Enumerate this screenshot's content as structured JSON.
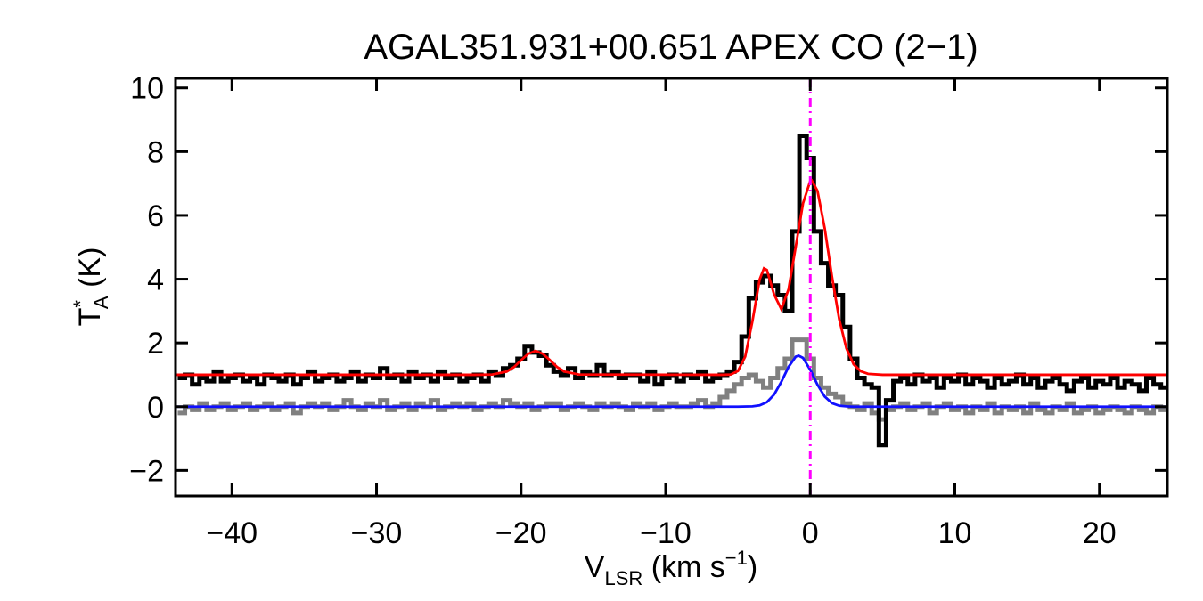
{
  "chart_data": {
    "type": "spectrum",
    "title": "AGAL351.931+00.651   APEX CO (2−1)",
    "xlabel": [
      {
        "text": "V"
      },
      {
        "text": "LSR",
        "script": "sub"
      },
      {
        "text": " (km s"
      },
      {
        "text": "−1",
        "script": "sup"
      },
      {
        "text": ")"
      }
    ],
    "ylabel": [
      {
        "text": "T"
      },
      {
        "text": "*",
        "script": "sup"
      },
      {
        "text": "A",
        "script": "sub"
      },
      {
        "text": " (K)"
      }
    ],
    "xlim": [
      -43.9,
      24.7
    ],
    "ylim": [
      -2.8,
      10.3
    ],
    "xticks": [
      {
        "value": -40,
        "label": "−40"
      },
      {
        "value": -30,
        "label": "−30"
      },
      {
        "value": -20,
        "label": "−20"
      },
      {
        "value": -10,
        "label": "−10"
      },
      0,
      10,
      20
    ],
    "yticks": [
      {
        "value": -2,
        "label": "−2"
      },
      0,
      2,
      4,
      6,
      8,
      10
    ],
    "x": [
      -43.5,
      -43,
      -42.5,
      -42,
      -41.5,
      -41,
      -40.5,
      -40,
      -39.5,
      -39,
      -38.5,
      -38,
      -37.5,
      -37,
      -36.5,
      -36,
      -35.5,
      -35,
      -34.5,
      -34,
      -33.5,
      -33,
      -32.5,
      -32,
      -31.5,
      -31,
      -30.5,
      -30,
      -29.5,
      -29,
      -28.5,
      -28,
      -27.5,
      -27,
      -26.5,
      -26,
      -25.5,
      -25,
      -24.5,
      -24,
      -23.5,
      -23,
      -22.5,
      -22,
      -21.5,
      -21,
      -20.5,
      -20,
      -19.5,
      -19,
      -18.5,
      -18,
      -17.5,
      -17,
      -16.5,
      -16,
      -15.5,
      -15,
      -14.5,
      -14,
      -13.5,
      -13,
      -12.5,
      -12,
      -11.5,
      -11,
      -10.5,
      -10,
      -9.5,
      -9,
      -8.5,
      -8,
      -7.5,
      -7,
      -6.5,
      -6,
      -5.5,
      -5,
      -4.5,
      -4,
      -3.5,
      -3,
      -2.5,
      -2,
      -1.5,
      -1,
      -0.5,
      0,
      0.5,
      1,
      1.5,
      2,
      2.5,
      3,
      3.5,
      4,
      4.5,
      5,
      5.5,
      6,
      6.5,
      7,
      7.5,
      8,
      8.5,
      9,
      9.5,
      10,
      10.5,
      11,
      11.5,
      12,
      12.5,
      13,
      13.5,
      14,
      14.5,
      15,
      15.5,
      16,
      16.5,
      17,
      17.5,
      18,
      18.5,
      19,
      19.5,
      20,
      20.5,
      21,
      21.5,
      22,
      22.5,
      23,
      23.5,
      24,
      24.5
    ],
    "series": [
      {
        "color": "#808080",
        "step": true,
        "values": [
          -0.2,
          0.0,
          -0.1,
          0.1,
          -0.1,
          0.0,
          0.1,
          -0.1,
          0.0,
          0.1,
          -0.1,
          0.0,
          0.1,
          -0.1,
          0.0,
          0.1,
          -0.2,
          0.0,
          0.1,
          0.0,
          0.1,
          -0.1,
          0.0,
          0.2,
          0.0,
          -0.1,
          0.1,
          0.0,
          0.2,
          -0.1,
          0.0,
          0.1,
          -0.1,
          0.1,
          0.0,
          0.2,
          -0.1,
          0.0,
          0.1,
          0.0,
          0.1,
          -0.1,
          0.0,
          0.1,
          0.0,
          0.2,
          0.1,
          0.0,
          0.1,
          -0.1,
          0.0,
          0.1,
          0.1,
          -0.1,
          0.0,
          0.1,
          0.0,
          -0.1,
          0.1,
          0.0,
          0.1,
          0.0,
          -0.1,
          0.1,
          0.0,
          0.1,
          -0.1,
          0.0,
          0.1,
          0.0,
          0.0,
          0.1,
          0.2,
          0.0,
          0.1,
          0.3,
          0.5,
          0.7,
          0.9,
          1.0,
          0.8,
          0.6,
          0.9,
          1.2,
          1.5,
          2.1,
          2.1,
          1.5,
          0.9,
          0.6,
          0.4,
          0.3,
          0.1,
          0.0,
          -0.1,
          0.1,
          -0.2,
          -0.4,
          -0.1,
          0.0,
          0.1,
          -0.1,
          0.0,
          0.1,
          -0.2,
          0.0,
          0.1,
          -0.1,
          0.0,
          -0.2,
          0.0,
          -0.1,
          0.1,
          -0.2,
          0.0,
          -0.1,
          0.0,
          -0.2,
          0.1,
          -0.1,
          -0.2,
          0.0,
          -0.1,
          0.1,
          -0.2,
          -0.1,
          0.0,
          -0.2,
          -0.1,
          0.0,
          -0.1,
          -0.2,
          0.0,
          -0.1,
          -0.2,
          0.0,
          -0.1
        ]
      },
      {
        "color": "#000000",
        "step": true,
        "values": [
          0.9,
          1.0,
          0.7,
          0.9,
          0.8,
          1.1,
          0.8,
          0.9,
          1.0,
          0.8,
          0.9,
          0.7,
          1.0,
          0.9,
          0.8,
          1.0,
          0.7,
          0.9,
          1.1,
          0.8,
          0.9,
          1.0,
          0.8,
          0.9,
          1.1,
          0.8,
          1.0,
          0.9,
          1.2,
          0.9,
          1.0,
          0.8,
          1.1,
          0.9,
          1.0,
          0.8,
          1.1,
          0.9,
          1.0,
          0.8,
          0.9,
          1.0,
          0.8,
          1.1,
          1.0,
          1.2,
          1.3,
          1.5,
          1.9,
          1.7,
          1.6,
          1.3,
          1.1,
          1.0,
          1.2,
          0.9,
          1.1,
          1.0,
          1.3,
          1.0,
          1.1,
          0.9,
          1.0,
          1.0,
          0.8,
          1.1,
          0.7,
          0.9,
          1.0,
          0.8,
          1.0,
          0.9,
          1.1,
          0.8,
          0.9,
          1.0,
          1.1,
          1.4,
          2.2,
          3.4,
          3.9,
          4.1,
          3.8,
          3.5,
          3.0,
          5.5,
          8.5,
          7.8,
          5.5,
          4.5,
          3.8,
          3.5,
          2.5,
          1.5,
          0.9,
          0.7,
          0.6,
          -1.2,
          0.2,
          0.8,
          0.9,
          0.7,
          1.0,
          0.8,
          0.9,
          0.6,
          0.9,
          0.8,
          1.0,
          0.7,
          0.9,
          0.8,
          0.6,
          0.9,
          0.7,
          0.8,
          1.0,
          0.7,
          0.9,
          0.6,
          0.8,
          0.9,
          0.7,
          0.5,
          0.8,
          0.9,
          0.6,
          0.8,
          0.7,
          0.9,
          0.6,
          0.8,
          0.7,
          0.5,
          0.9,
          0.7,
          0.6
        ]
      },
      {
        "color": "#ff0000",
        "x": [
          -43.9,
          -23,
          -22,
          -21,
          -20.5,
          -20,
          -19.5,
          -19,
          -18.5,
          -18,
          -17.5,
          -17,
          -16,
          -6,
          -5.5,
          -5,
          -4.5,
          -4,
          -3.5,
          -3.2,
          -3,
          -2.5,
          -2,
          -1.5,
          -1,
          -0.5,
          0,
          0.1,
          0.5,
          1,
          1.5,
          2,
          2.5,
          3,
          3.5,
          4,
          5,
          24.7
        ],
        "values": [
          1.0,
          1.0,
          1.01,
          1.1,
          1.24,
          1.46,
          1.66,
          1.75,
          1.66,
          1.46,
          1.24,
          1.1,
          1.01,
          1.0,
          1.01,
          1.12,
          1.57,
          2.68,
          3.99,
          4.34,
          4.29,
          3.52,
          3.06,
          3.68,
          5.03,
          6.38,
          7.08,
          7.1,
          6.77,
          5.6,
          4.09,
          2.75,
          1.83,
          1.33,
          1.11,
          1.03,
          1.0,
          1.0
        ]
      },
      {
        "color": "#1010ff",
        "x": [
          -43.9,
          -5,
          -4,
          -3.5,
          -3,
          -2.5,
          -2,
          -1.5,
          -1,
          -0.8,
          -0.5,
          0,
          0.5,
          1,
          1.5,
          2,
          2.5,
          3,
          24.7
        ],
        "values": [
          0,
          0,
          0.01,
          0.04,
          0.14,
          0.38,
          0.78,
          1.25,
          1.57,
          1.6,
          1.53,
          1.16,
          0.69,
          0.32,
          0.11,
          0.03,
          0.01,
          0,
          0
        ]
      }
    ],
    "vline": {
      "x": 0,
      "color": "#ff00ff"
    }
  }
}
